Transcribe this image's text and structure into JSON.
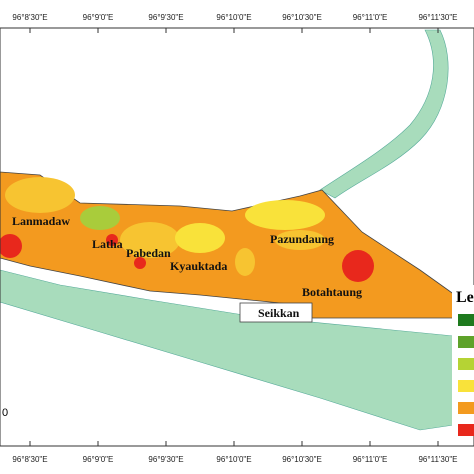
{
  "grid_labels_top": [
    "96°8'30\"E",
    "96°9'0\"E",
    "96°9'30\"E",
    "96°10'0\"E",
    "96°10'30\"E",
    "96°11'0\"E",
    "96°11'30\"E"
  ],
  "grid_labels_bottom": [
    "96°8'30\"E",
    "96°9'0\"E",
    "96°9'30\"E",
    "96°10'0\"E",
    "96°10'30\"E",
    "96°11'0\"E",
    "96°11'30\"E"
  ],
  "places": [
    {
      "label": "Lanmadaw"
    },
    {
      "label": "Latha"
    },
    {
      "label": "Pabedan"
    },
    {
      "label": "Kyauktada"
    },
    {
      "label": "Pazundaung"
    },
    {
      "label": "Botahtaung"
    },
    {
      "label": "Seikkan"
    }
  ],
  "legend": {
    "title": "Le"
  },
  "scale_label": "0"
}
